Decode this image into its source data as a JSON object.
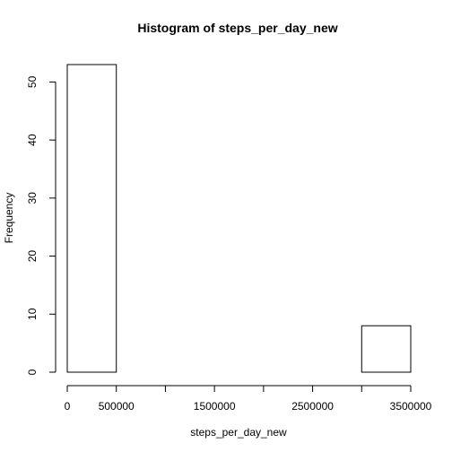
{
  "chart_data": {
    "type": "bar",
    "title": "Histogram of steps_per_day_new",
    "xlabel": "steps_per_day_new",
    "ylabel": "Frequency",
    "bins": [
      {
        "start": 0,
        "end": 500000,
        "count": 53
      },
      {
        "start": 500000,
        "end": 1000000,
        "count": 0
      },
      {
        "start": 1000000,
        "end": 1500000,
        "count": 0
      },
      {
        "start": 1500000,
        "end": 2000000,
        "count": 0
      },
      {
        "start": 2000000,
        "end": 2500000,
        "count": 0
      },
      {
        "start": 2500000,
        "end": 3000000,
        "count": 0
      },
      {
        "start": 3000000,
        "end": 3500000,
        "count": 8
      }
    ],
    "xlim": [
      0,
      3500000
    ],
    "ylim": [
      0,
      53
    ],
    "x_ticks": [
      0,
      500000,
      1000000,
      1500000,
      2000000,
      2500000,
      3000000,
      3500000
    ],
    "x_tick_labels": [
      "0",
      "500000",
      "",
      "1500000",
      "",
      "2500000",
      "",
      "3500000"
    ],
    "y_ticks": [
      0,
      10,
      20,
      30,
      40,
      50
    ],
    "y_tick_labels": [
      "0",
      "10",
      "20",
      "30",
      "40",
      "50"
    ],
    "grid": false,
    "colors": {
      "bar_fill": "#ffffff",
      "bar_stroke": "#000000",
      "axis": "#000000"
    }
  }
}
